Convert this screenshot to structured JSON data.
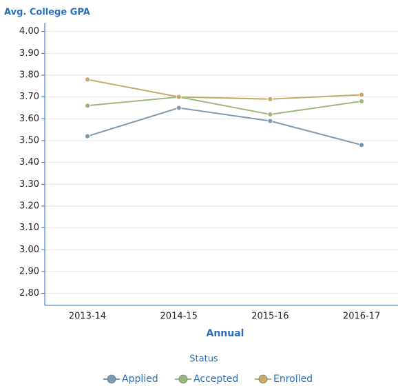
{
  "chart_data": {
    "type": "line",
    "title": "Avg. College GPA",
    "x_label": "Annual",
    "legend_title": "Status",
    "categories": [
      "2013-14",
      "2014-15",
      "2015-16",
      "2016-17"
    ],
    "series": [
      {
        "name": "Applied",
        "color": "#7d9ab0",
        "values": [
          3.52,
          3.65,
          3.59,
          3.48
        ]
      },
      {
        "name": "Accepted",
        "color": "#9db77c",
        "values": [
          3.66,
          3.7,
          3.62,
          3.68
        ]
      },
      {
        "name": "Enrolled",
        "color": "#c6aa68",
        "values": [
          3.78,
          3.7,
          3.69,
          3.71
        ]
      }
    ],
    "ylim": [
      2.745,
      4.04
    ],
    "yticks": [
      {
        "value": 2.8,
        "label": "2.80"
      },
      {
        "value": 2.9,
        "label": "2.90"
      },
      {
        "value": 3.0,
        "label": "3.00"
      },
      {
        "value": 3.1,
        "label": "3.10"
      },
      {
        "value": 3.2,
        "label": "3.20"
      },
      {
        "value": 3.3,
        "label": "3.30"
      },
      {
        "value": 3.4,
        "label": "3.40"
      },
      {
        "value": 3.5,
        "label": "3.50"
      },
      {
        "value": 3.6,
        "label": "3.60"
      },
      {
        "value": 3.7,
        "label": "3.70"
      },
      {
        "value": 3.8,
        "label": "3.80"
      },
      {
        "value": 3.9,
        "label": "3.90"
      },
      {
        "value": 4.0,
        "label": "4.00"
      }
    ],
    "grid": true
  }
}
